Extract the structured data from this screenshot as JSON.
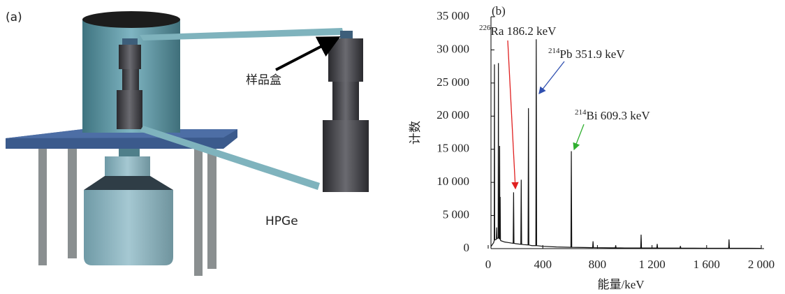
{
  "diagram": {
    "panel_label": "(a)",
    "sample_box_label": "样品盒",
    "detector_label": "HPGe"
  },
  "chart_data": {
    "type": "line",
    "panel_label": "(b)",
    "x_label": "能量/keV",
    "y_label": "计数",
    "xlim": [
      0,
      2000
    ],
    "xticks": [
      0,
      400,
      800,
      {
        "value": 1200,
        "label": "1 200"
      },
      {
        "value": 1600,
        "label": "1 600"
      },
      {
        "value": 2000,
        "label": "2 000"
      }
    ],
    "ylim": [
      0,
      35000
    ],
    "yticks": [
      0,
      {
        "value": 5000,
        "label": "5 000"
      },
      {
        "value": 10000,
        "label": "10 000"
      },
      {
        "value": 15000,
        "label": "15 000"
      },
      {
        "value": 20000,
        "label": "20 000"
      },
      {
        "value": 25000,
        "label": "25 000"
      },
      {
        "value": 30000,
        "label": "30 000"
      },
      {
        "value": 35000,
        "label": "35 000"
      }
    ],
    "x": [
      20,
      40,
      44,
      46,
      48,
      60,
      62,
      64,
      73,
      75,
      77,
      82,
      84,
      86,
      88,
      90,
      92,
      120,
      150,
      183,
      186.2,
      189,
      200,
      239,
      242,
      245,
      260,
      292,
      295,
      298,
      320,
      349,
      352,
      355,
      400,
      500,
      606,
      609,
      612,
      700,
      765,
      768,
      771,
      900,
      931,
      934,
      937,
      1000,
      1117,
      1120,
      1123,
      1200,
      1235,
      1238,
      1241,
      1400,
      1405,
      1408,
      1411,
      1600,
      1761,
      1764,
      1767,
      1900,
      2000
    ],
    "series": [
      {
        "color": "#111111",
        "values": [
          300,
          900,
          1200,
          27800,
          1300,
          1400,
          3200,
          1500,
          1600,
          28000,
          1600,
          1500,
          15500,
          1400,
          7800,
          1300,
          1200,
          1000,
          900,
          800,
          8500,
          800,
          750,
          650,
          10400,
          650,
          600,
          550,
          21200,
          550,
          450,
          450,
          31600,
          450,
          350,
          250,
          200,
          14700,
          200,
          170,
          150,
          1100,
          150,
          120,
          115,
          500,
          110,
          100,
          100,
          2100,
          100,
          90,
          90,
          700,
          90,
          80,
          80,
          400,
          80,
          60,
          60,
          1400,
          60,
          50,
          40
        ]
      }
    ],
    "annotations": [
      {
        "mass": "226",
        "label": "Ra 186.2 keV",
        "color": "#e02020"
      },
      {
        "mass": "214",
        "label": "Pb 351.9 keV",
        "color": "#3050b0"
      },
      {
        "mass": "214",
        "label": "Bi 609.3 keV",
        "color": "#30b030"
      }
    ]
  }
}
